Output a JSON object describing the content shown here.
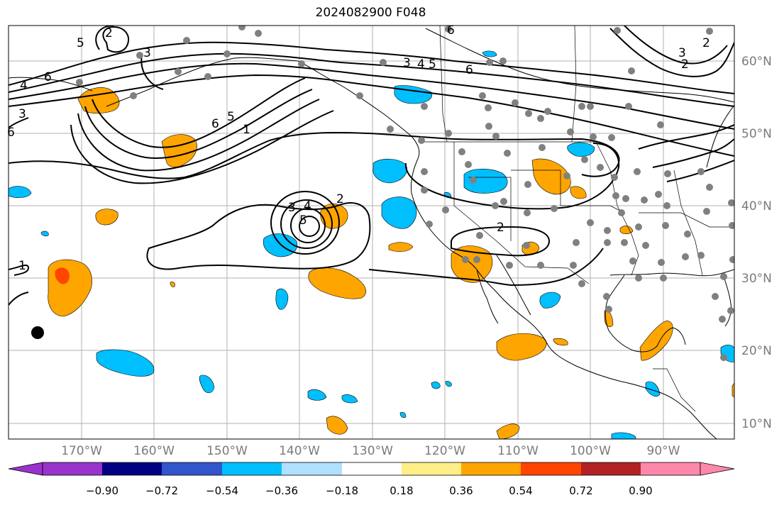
{
  "title": "2024082900 F048",
  "lat_labels": [
    "60°N",
    "50°N",
    "40°N",
    "30°N",
    "20°N",
    "10°N"
  ],
  "lon_labels": [
    "170°W",
    "160°W",
    "150°W",
    "140°W",
    "130°W",
    "120°W",
    "110°W",
    "100°W",
    "90°W"
  ],
  "colorbar": {
    "ticks": [
      "−0.90",
      "−0.72",
      "−0.54",
      "−0.36",
      "−0.18",
      "0.18",
      "0.36",
      "0.54",
      "0.72",
      "0.90"
    ],
    "colors": [
      "#9933cc",
      "#000080",
      "#3355cc",
      "#00bfff",
      "#b0e0ff",
      "#ffffff",
      "#ffee88",
      "#ffa500",
      "#ff4500",
      "#b22222",
      "#ff88aa"
    ]
  },
  "contour_labels": [
    "6",
    "4",
    "3",
    "2",
    "3",
    "6",
    "5",
    "1",
    "3",
    "4",
    "5",
    "2",
    "2",
    "3",
    "4",
    "5",
    "6",
    "1",
    "6",
    "2",
    "3",
    "2",
    "5",
    "6"
  ],
  "station_count": 96,
  "colors": {
    "positive_fill": "#ffa500",
    "strong_positive_fill": "#ff4500",
    "negative_fill": "#00bfff",
    "station_dot": "#808080",
    "gridline": "#b0b0b0"
  }
}
